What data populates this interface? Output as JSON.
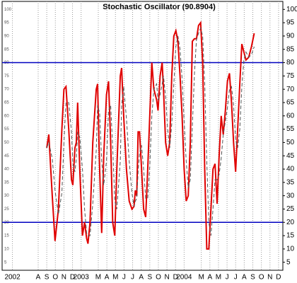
{
  "chart_data": {
    "type": "line",
    "title": "Stochastic Oscillator (90.8904)",
    "x": [
      8.0,
      8.24,
      8.64,
      8.96,
      9.36,
      9.76,
      10.0,
      10.24,
      10.56,
      10.88,
      11.04,
      11.28,
      11.44,
      11.6,
      11.84,
      12.16,
      12.4,
      12.64,
      12.8,
      13.04,
      13.36,
      13.76,
      13.92,
      14.16,
      14.4,
      14.64,
      14.96,
      15.2,
      15.44,
      15.68,
      15.92,
      16.16,
      16.56,
      16.72,
      16.96,
      17.28,
      17.6,
      17.92,
      18.16,
      18.32,
      18.48,
      18.64,
      18.8,
      19.04,
      19.28,
      19.52,
      19.76,
      20.0,
      20.24,
      20.48,
      20.8,
      20.96,
      21.2,
      21.44,
      21.6,
      21.84,
      22.08,
      22.32,
      22.56,
      22.8,
      23.04,
      23.28,
      23.52,
      23.76,
      24.0,
      24.24,
      24.48,
      24.72,
      24.96,
      25.2,
      25.44,
      25.68,
      25.92,
      26.16,
      26.4,
      26.64,
      26.88,
      27.12,
      27.36,
      27.6,
      27.84,
      28.08,
      28.32,
      28.56,
      28.8,
      29.04,
      29.28,
      29.52,
      29.76,
      30.0,
      30.24,
      30.48,
      30.72,
      30.96,
      31.2,
      31.52,
      31.84,
      32.16
    ],
    "series": [
      {
        "color": "#e00000",
        "dashed": false,
        "values": [
          48,
          53,
          30,
          13,
          25,
          55,
          70,
          71,
          55,
          36,
          34,
          48,
          50,
          65,
          40,
          15,
          20,
          14,
          12,
          20,
          50,
          70,
          72,
          40,
          16,
          45,
          68,
          73,
          50,
          20,
          15,
          40,
          75,
          78,
          60,
          40,
          28,
          25,
          26,
          32,
          30,
          54,
          54,
          40,
          25,
          22,
          40,
          60,
          80,
          70,
          66,
          62,
          75,
          80,
          70,
          50,
          45,
          50,
          75,
          90,
          92,
          88,
          75,
          60,
          40,
          28,
          30,
          50,
          88,
          89,
          89,
          94,
          95,
          80,
          40,
          10,
          10,
          25,
          40,
          42,
          27,
          45,
          60,
          53,
          62,
          73,
          76,
          65,
          50,
          39,
          55,
          72,
          87,
          84,
          81,
          82,
          86,
          91
        ]
      },
      {
        "color": "#555555",
        "dashed": true,
        "values": [
          48,
          50,
          44,
          32,
          23,
          31,
          50,
          65,
          65,
          54,
          42,
          39,
          44,
          54,
          52,
          40,
          25,
          16,
          15,
          15,
          27,
          47,
          64,
          61,
          43,
          34,
          43,
          62,
          64,
          48,
          28,
          25,
          43,
          64,
          71,
          59,
          43,
          31,
          26,
          28,
          29,
          39,
          46,
          49,
          40,
          29,
          29,
          41,
          60,
          70,
          72,
          66,
          68,
          72,
          75,
          67,
          55,
          48,
          57,
          72,
          86,
          90,
          85,
          74,
          58,
          43,
          33,
          36,
          56,
          76,
          89,
          91,
          93,
          90,
          72,
          43,
          20,
          15,
          25,
          36,
          36,
          38,
          44,
          53,
          58,
          63,
          70,
          71,
          64,
          51,
          48,
          55,
          71,
          81,
          84,
          82,
          83,
          86
        ]
      }
    ],
    "levels": [
      80,
      20
    ],
    "level_color": "#0000c0",
    "xlim": [
      2.8,
      35.5
    ],
    "ylim": [
      2,
      103
    ],
    "yticks": [
      5,
      10,
      15,
      20,
      25,
      30,
      35,
      40,
      45,
      50,
      55,
      60,
      65,
      70,
      75,
      80,
      85,
      90,
      95,
      100
    ],
    "xticks": [
      {
        "value": 4,
        "label": "2002"
      },
      {
        "value": 7,
        "label": "A"
      },
      {
        "value": 8,
        "label": "S"
      },
      {
        "value": 9,
        "label": "O"
      },
      {
        "value": 10,
        "label": "N"
      },
      {
        "value": 11,
        "label": "D"
      },
      {
        "value": 12,
        "label": "2003"
      },
      {
        "value": 14,
        "label": "M"
      },
      {
        "value": 15,
        "label": "A"
      },
      {
        "value": 16,
        "label": "M"
      },
      {
        "value": 17,
        "label": "J"
      },
      {
        "value": 18,
        "label": "J"
      },
      {
        "value": 19,
        "label": "A"
      },
      {
        "value": 20,
        "label": "S"
      },
      {
        "value": 21,
        "label": "O"
      },
      {
        "value": 22,
        "label": "N"
      },
      {
        "value": 23,
        "label": "D"
      },
      {
        "value": 24,
        "label": "2004"
      },
      {
        "value": 26,
        "label": "M"
      },
      {
        "value": 27,
        "label": "A"
      },
      {
        "value": 28,
        "label": "M"
      },
      {
        "value": 29,
        "label": "J"
      },
      {
        "value": 30,
        "label": "J"
      },
      {
        "value": 31,
        "label": "A"
      },
      {
        "value": 32,
        "label": "S"
      },
      {
        "value": 33,
        "label": "O"
      },
      {
        "value": 34,
        "label": "N"
      },
      {
        "value": 35,
        "label": "D"
      }
    ],
    "grid": true
  }
}
